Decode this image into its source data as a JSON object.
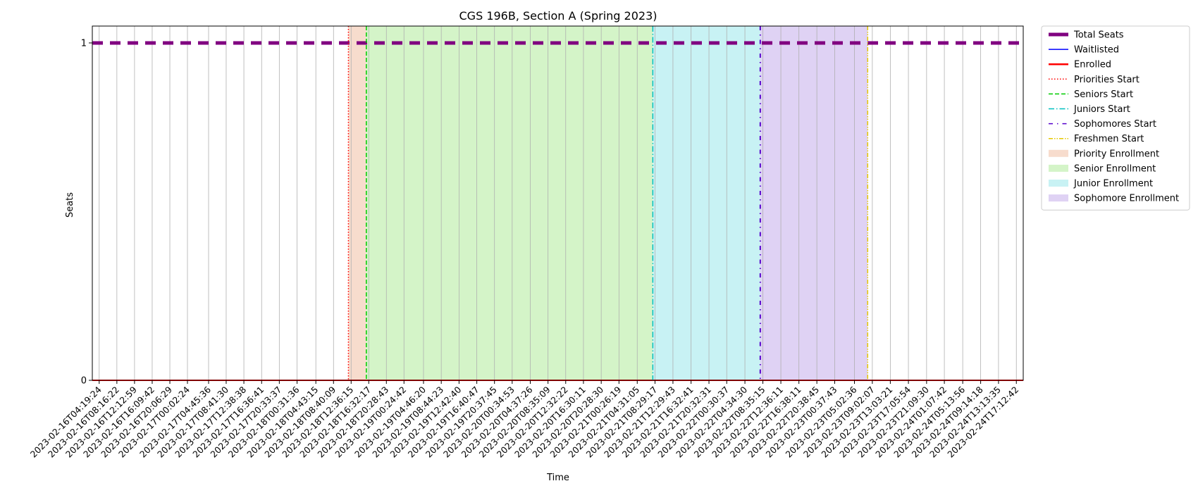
{
  "chart_data": {
    "type": "line",
    "title": "CGS 196B, Section A (Spring 2023)",
    "xlabel": "Time",
    "ylabel": "Seats",
    "ylim": [
      0,
      1.05
    ],
    "yticks": [
      0,
      1
    ],
    "grid": "vertical",
    "legend_position": "outside-right",
    "x": [
      "2023-02-16T04:19:24",
      "2023-02-16T08:16:22",
      "2023-02-16T12:12:59",
      "2023-02-16T16:09:42",
      "2023-02-16T20:06:29",
      "2023-02-17T00:02:24",
      "2023-02-17T04:45:36",
      "2023-02-17T08:41:30",
      "2023-02-17T12:38:38",
      "2023-02-17T16:36:41",
      "2023-02-17T20:33:37",
      "2023-02-18T00:31:36",
      "2023-02-18T04:43:15",
      "2023-02-18T08:40:09",
      "2023-02-18T12:36:15",
      "2023-02-18T16:32:17",
      "2023-02-18T20:28:43",
      "2023-02-19T00:24:42",
      "2023-02-19T04:46:20",
      "2023-02-19T08:44:23",
      "2023-02-19T12:42:40",
      "2023-02-19T16:40:47",
      "2023-02-19T20:37:45",
      "2023-02-20T00:34:53",
      "2023-02-20T04:37:26",
      "2023-02-20T08:35:09",
      "2023-02-20T12:32:22",
      "2023-02-20T16:30:11",
      "2023-02-20T20:28:30",
      "2023-02-21T00:26:19",
      "2023-02-21T04:31:05",
      "2023-02-21T08:29:17",
      "2023-02-21T12:29:43",
      "2023-02-21T16:32:41",
      "2023-02-21T20:32:31",
      "2023-02-22T00:30:37",
      "2023-02-22T04:34:30",
      "2023-02-22T08:35:15",
      "2023-02-22T12:36:11",
      "2023-02-22T16:38:11",
      "2023-02-22T20:38:45",
      "2023-02-23T00:37:43",
      "2023-02-23T05:02:36",
      "2023-02-23T09:02:07",
      "2023-02-23T13:03:21",
      "2023-02-23T17:05:54",
      "2023-02-23T21:09:30",
      "2023-02-24T01:07:42",
      "2023-02-24T05:13:56",
      "2023-02-24T09:14:18",
      "2023-02-24T13:13:35",
      "2023-02-24T17:12:42"
    ],
    "series": [
      {
        "name": "Total Seats",
        "value": 1,
        "color": "#800080",
        "style": "dashed-thick"
      },
      {
        "name": "Waitlisted",
        "value": 0,
        "color": "#0000ff",
        "style": "solid"
      },
      {
        "name": "Enrolled",
        "value": 0,
        "color": "#ff0000",
        "style": "solid"
      }
    ],
    "markers": [
      {
        "name": "Priorities Start",
        "x": "2023-02-18T12:00:00",
        "color": "#ff0000",
        "style": "dotted"
      },
      {
        "name": "Seniors Start",
        "x": "2023-02-18T16:00:00",
        "color": "#00cc00",
        "style": "dashed"
      },
      {
        "name": "Juniors Start",
        "x": "2023-02-21T08:00:00",
        "color": "#00bfbf",
        "style": "dashdot"
      },
      {
        "name": "Sophomores Start",
        "x": "2023-02-22T08:00:00",
        "color": "#5500cc",
        "style": "dash-dot-sparse"
      },
      {
        "name": "Freshmen Start",
        "x": "2023-02-23T08:00:00",
        "color": "#e6c800",
        "style": "dashdotdot"
      }
    ],
    "regions": [
      {
        "name": "Priority Enrollment",
        "from": "2023-02-18T12:00:00",
        "to": "2023-02-18T16:00:00",
        "color": "#f4cdb8"
      },
      {
        "name": "Senior Enrollment",
        "from": "2023-02-18T16:00:00",
        "to": "2023-02-21T08:00:00",
        "color": "#c2f0b0"
      },
      {
        "name": "Junior Enrollment",
        "from": "2023-02-21T08:00:00",
        "to": "2023-02-22T08:00:00",
        "color": "#b0ecf0"
      },
      {
        "name": "Sophomore Enrollment",
        "from": "2023-02-22T08:00:00",
        "to": "2023-02-23T08:00:00",
        "color": "#d2bff0"
      }
    ]
  }
}
